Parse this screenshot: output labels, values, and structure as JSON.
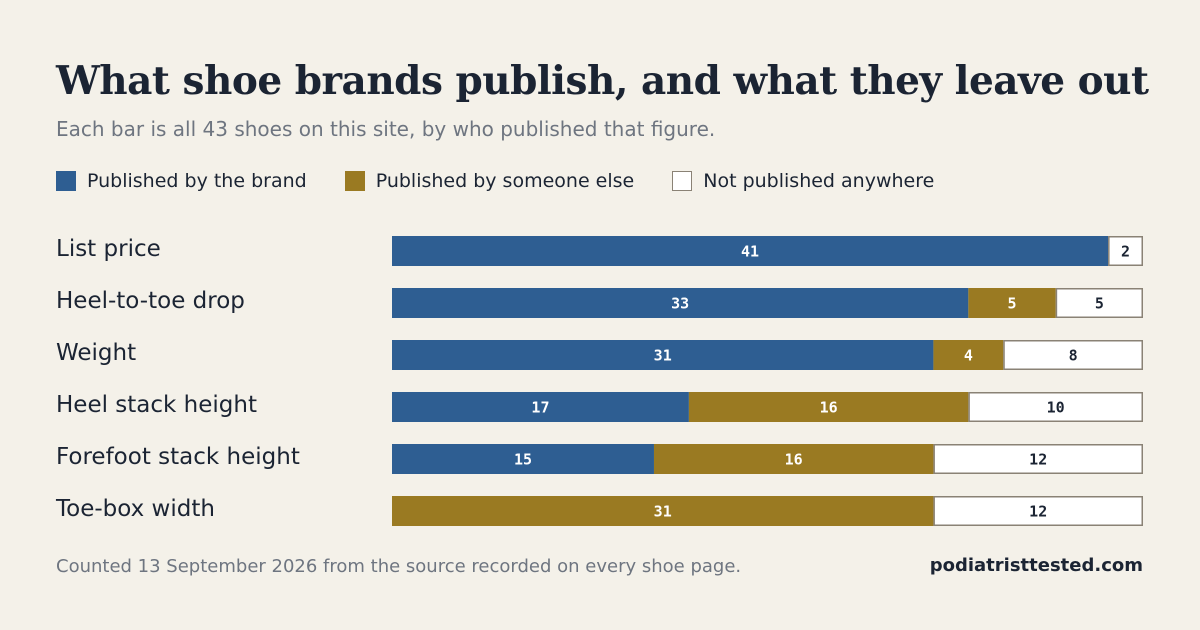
{
  "chart_data": {
    "type": "bar",
    "orientation": "horizontal",
    "stacked": true,
    "title": "What shoe brands publish, and what they leave out",
    "subtitle": "Each bar is all 43 shoes on this site, by who published that figure.",
    "total": 43,
    "categories": [
      "List price",
      "Heel-to-toe drop",
      "Weight",
      "Heel stack height",
      "Forefoot stack height",
      "Toe-box width"
    ],
    "series": [
      {
        "name": "Published by the brand",
        "color": "#2e5e92",
        "values": [
          41,
          33,
          31,
          17,
          15,
          0
        ]
      },
      {
        "name": "Published by someone else",
        "color": "#9a7a22",
        "values": [
          0,
          5,
          4,
          16,
          16,
          31
        ]
      },
      {
        "name": "Not published anywhere",
        "color": "#ffffff",
        "values": [
          2,
          5,
          8,
          10,
          12,
          12
        ]
      }
    ],
    "legend_position": "top-left",
    "grid": false,
    "data_labels": true
  },
  "footer": {
    "note": "Counted 13 September 2026 from the source recorded on every shoe page.",
    "site": "podiatristtested.com"
  },
  "colors": {
    "background": "#f4f1e9",
    "text": "#1b2433",
    "muted_text": "#6e7580",
    "empty_outline": "#8a8275"
  }
}
